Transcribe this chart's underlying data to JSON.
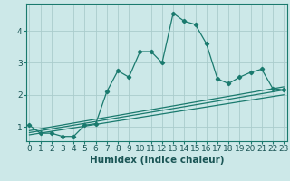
{
  "title": "",
  "xlabel": "Humidex (Indice chaleur)",
  "bg_color": "#cce8e8",
  "grid_color": "#aacccc",
  "line_color": "#1a7a6e",
  "main_x": [
    0,
    1,
    2,
    3,
    4,
    5,
    6,
    7,
    8,
    9,
    10,
    11,
    12,
    13,
    14,
    15,
    16,
    17,
    18,
    19,
    20,
    21,
    22,
    23
  ],
  "main_y": [
    1.05,
    0.8,
    0.8,
    0.7,
    0.7,
    1.05,
    1.1,
    2.1,
    2.75,
    2.55,
    3.35,
    3.35,
    3.0,
    4.55,
    4.3,
    4.2,
    3.6,
    2.5,
    2.35,
    2.55,
    2.7,
    2.8,
    2.2,
    2.15
  ],
  "line1_x": [
    0,
    23
  ],
  "line1_y": [
    0.88,
    2.25
  ],
  "line2_x": [
    0,
    23
  ],
  "line2_y": [
    0.82,
    2.15
  ],
  "line3_x": [
    0,
    23
  ],
  "line3_y": [
    0.75,
    2.0
  ],
  "xlim": [
    -0.3,
    23.3
  ],
  "ylim": [
    0.55,
    4.85
  ],
  "xticks": [
    0,
    1,
    2,
    3,
    4,
    5,
    6,
    7,
    8,
    9,
    10,
    11,
    12,
    13,
    14,
    15,
    16,
    17,
    18,
    19,
    20,
    21,
    22,
    23
  ],
  "yticks": [
    1,
    2,
    3,
    4
  ],
  "tick_fontsize": 6.5,
  "xlabel_fontsize": 7.5
}
